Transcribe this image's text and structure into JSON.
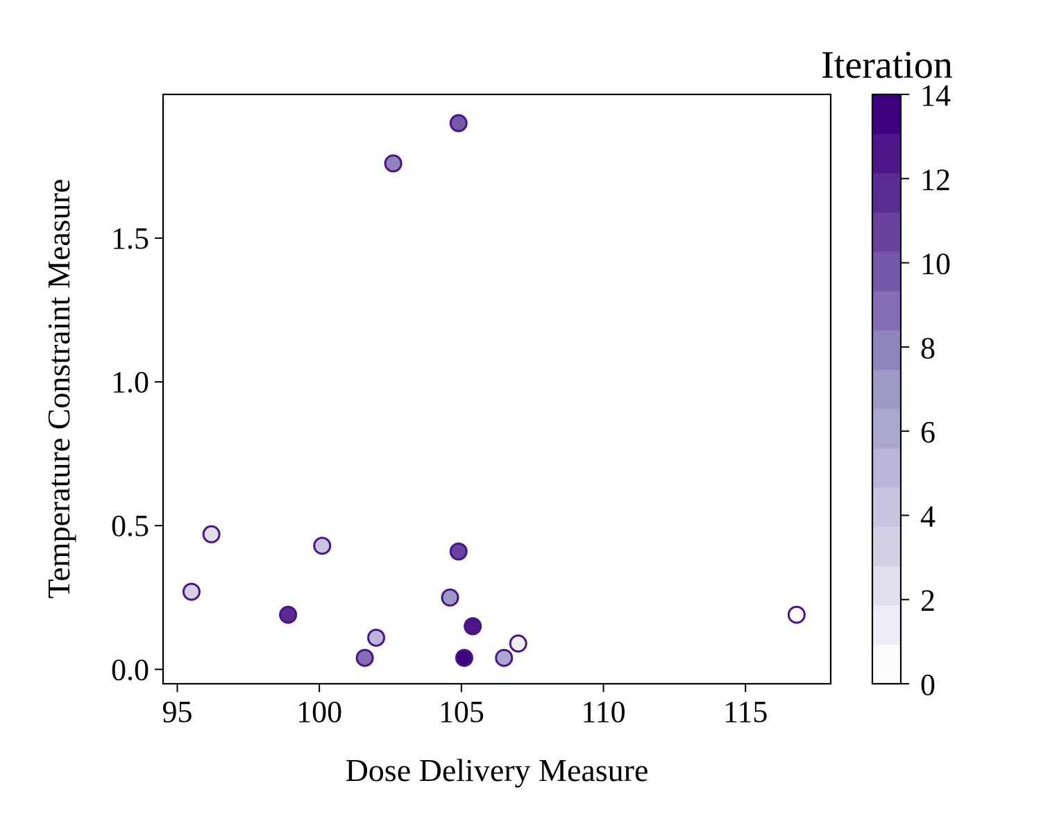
{
  "chart_data": {
    "type": "scatter",
    "title": "",
    "xlabel": "Dose Delivery Measure",
    "ylabel": "Temperature Constraint Measure",
    "xlim": [
      94.5,
      118
    ],
    "ylim": [
      -0.05,
      2.0
    ],
    "x_ticks": [
      95,
      100,
      105,
      110,
      115
    ],
    "y_ticks": [
      0.0,
      0.5,
      1.0,
      1.5
    ],
    "y_tick_labels": [
      "0.0",
      "0.5",
      "1.0",
      "1.5"
    ],
    "grid": false,
    "colorbar": {
      "title": "Iteration",
      "min": 0,
      "max": 14,
      "levels": 15,
      "ticks": [
        0,
        2,
        4,
        6,
        8,
        10,
        12,
        14
      ],
      "colormap": "Purples",
      "color_low": "#fcfbfd",
      "color_high": "#3f007d"
    },
    "marker_edge_color": "#4a1486",
    "points": [
      {
        "x": 116.8,
        "y": 0.19,
        "iteration": 0
      },
      {
        "x": 107.0,
        "y": 0.09,
        "iteration": 1
      },
      {
        "x": 96.2,
        "y": 0.47,
        "iteration": 2
      },
      {
        "x": 95.5,
        "y": 0.27,
        "iteration": 3
      },
      {
        "x": 100.1,
        "y": 0.43,
        "iteration": 4
      },
      {
        "x": 102.0,
        "y": 0.11,
        "iteration": 5
      },
      {
        "x": 106.5,
        "y": 0.04,
        "iteration": 6
      },
      {
        "x": 104.6,
        "y": 0.25,
        "iteration": 7
      },
      {
        "x": 102.6,
        "y": 1.76,
        "iteration": 8
      },
      {
        "x": 101.6,
        "y": 0.04,
        "iteration": 9
      },
      {
        "x": 104.9,
        "y": 1.9,
        "iteration": 10
      },
      {
        "x": 104.9,
        "y": 0.41,
        "iteration": 11
      },
      {
        "x": 98.9,
        "y": 0.19,
        "iteration": 12
      },
      {
        "x": 105.4,
        "y": 0.15,
        "iteration": 13
      },
      {
        "x": 105.1,
        "y": 0.04,
        "iteration": 14
      }
    ]
  }
}
